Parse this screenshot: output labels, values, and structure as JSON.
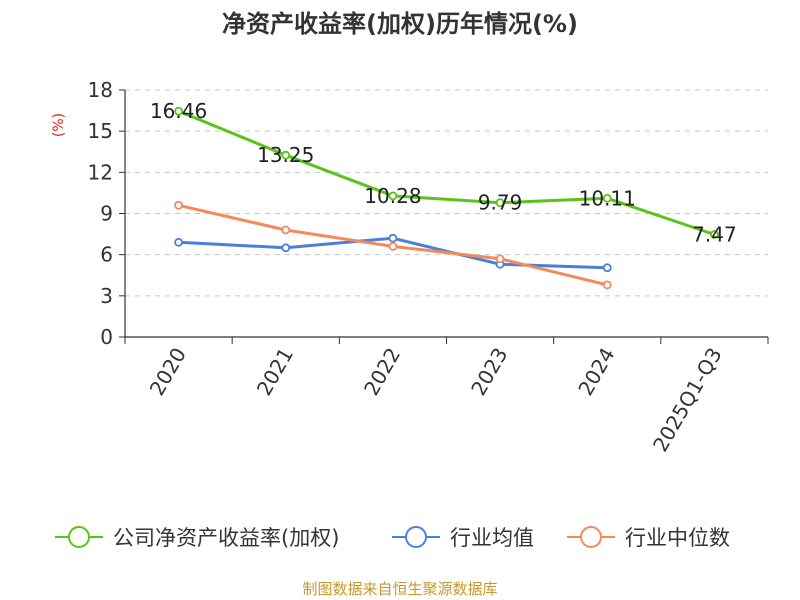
{
  "chart_data": {
    "type": "line",
    "title": "净资产收益率(加权)历年情况(%)",
    "ylabel": "(%)",
    "xlabel": "",
    "categories": [
      "2020",
      "2021",
      "2022",
      "2023",
      "2024",
      "2025Q1-Q3"
    ],
    "ylim": [
      0,
      18
    ],
    "yticks": [
      0,
      3,
      6,
      9,
      12,
      15,
      18
    ],
    "grid": true,
    "legend_position": "bottom",
    "series": [
      {
        "name": "公司净资产收益率(加权)",
        "color": "#5cc21b",
        "values": [
          16.46,
          13.25,
          10.28,
          9.79,
          10.11,
          7.47
        ],
        "labels": [
          "16.46",
          "13.25",
          "10.28",
          "9.79",
          "10.11",
          "7.47"
        ]
      },
      {
        "name": "行业均值",
        "color": "#4a7fdc",
        "values": [
          6.9,
          6.5,
          7.2,
          5.3,
          5.05,
          null
        ]
      },
      {
        "name": "行业中位数",
        "color": "#f5895a",
        "values": [
          9.6,
          7.8,
          6.6,
          5.7,
          3.8,
          null
        ]
      }
    ],
    "source": "制图数据来自恒生聚源数据库"
  }
}
